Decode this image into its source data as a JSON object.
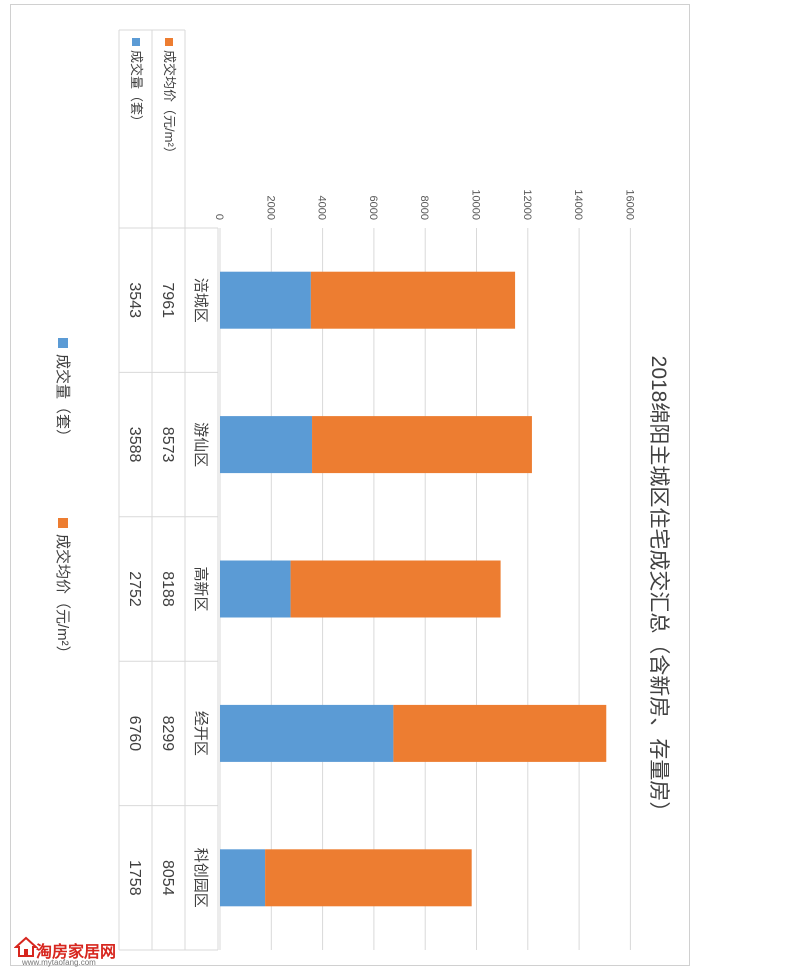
{
  "chart_data": {
    "type": "bar",
    "stacked": true,
    "orientation": "vertical",
    "title": "2018绵阳主城区住宅成交汇总（含新房、存量房）",
    "categories": [
      "涪城区",
      "游仙区",
      "高新区",
      "经开区",
      "科创园区"
    ],
    "series": [
      {
        "name": "成交量（套）",
        "color": "#5b9bd5",
        "values": [
          3543,
          3588,
          2752,
          6760,
          1758
        ]
      },
      {
        "name": "成交均价（元/m²）",
        "color": "#ed7d31",
        "values": [
          7961,
          8573,
          8188,
          8299,
          8054
        ]
      }
    ],
    "ylim": [
      0,
      16000
    ],
    "yticks": [
      0,
      2000,
      4000,
      6000,
      8000,
      10000,
      12000,
      14000,
      16000
    ],
    "ytick_labels": [
      "0",
      "2000",
      "4000",
      "6000",
      "8000",
      "10000",
      "12000",
      "14000",
      "16000"
    ],
    "grid": true,
    "legend_position": "bottom",
    "legend": [
      "成交量（套）",
      "成交均价（元/m²）"
    ],
    "data_table": {
      "rows": [
        {
          "series": "成交均价（元/m²）",
          "values": [
            "7961",
            "8573",
            "8188",
            "8299",
            "8054"
          ]
        },
        {
          "series": "成交量（套）",
          "values": [
            "3543",
            "3588",
            "2752",
            "6760",
            "1758"
          ]
        }
      ]
    }
  },
  "watermark": {
    "name": "淘房家居网",
    "url": "www.mytaofang.com"
  }
}
